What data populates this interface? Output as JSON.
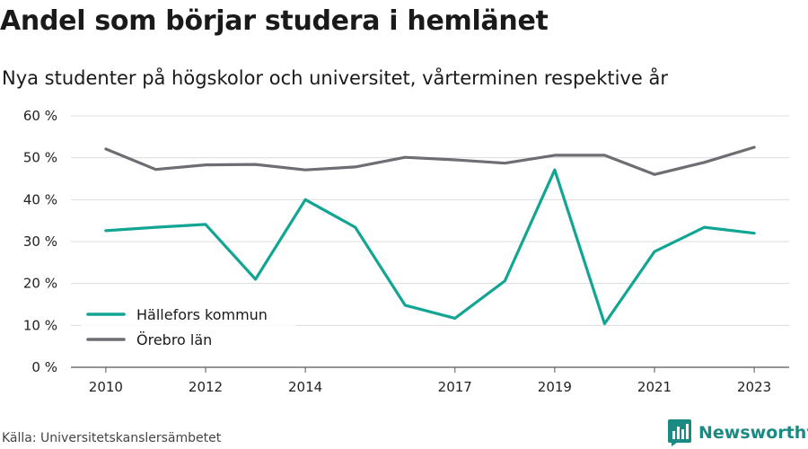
{
  "title": "Andel som börjar studera i hemlänet",
  "subtitle": "Nya studenter på högskolor och universitet, vårterminen respektive år",
  "source": "Källa: Universitetskanslersämbetet",
  "brand": {
    "name": "Newsworthy",
    "logo_icon": "bar-chart-document-icon",
    "color": "#1a8a83"
  },
  "chart_data": {
    "type": "line",
    "x": [
      2010,
      2011,
      2012,
      2013,
      2014,
      2015,
      2016,
      2017,
      2018,
      2019,
      2020,
      2021,
      2022,
      2023
    ],
    "x_tick_labels": [
      "2010",
      "2012",
      "2014",
      "2017",
      "2019",
      "2021",
      "2023"
    ],
    "x_tick_values": [
      2010,
      2012,
      2014,
      2017,
      2019,
      2021,
      2023
    ],
    "xlim": [
      2009.3,
      2023.7
    ],
    "ylim": [
      0,
      60
    ],
    "y_ticks": [
      0,
      10,
      20,
      30,
      40,
      50,
      60
    ],
    "y_tick_labels": [
      "0 %",
      "10 %",
      "20 %",
      "30 %",
      "40 %",
      "50 %",
      "60 %"
    ],
    "grid": "horizontal",
    "legend_position": "bottom-left",
    "series": [
      {
        "name": "Hällefors kommun",
        "color": "#12a594",
        "values": [
          32.6,
          33.4,
          34.1,
          21.0,
          40.0,
          33.4,
          14.8,
          11.7,
          20.6,
          47.1,
          10.4,
          27.6,
          33.4,
          32.0
        ]
      },
      {
        "name": "Örebro län",
        "color": "#6e6d73",
        "values": [
          52.1,
          47.2,
          48.3,
          48.4,
          47.1,
          47.8,
          50.1,
          49.5,
          48.7,
          50.6,
          50.6,
          46.0,
          48.9,
          52.5
        ]
      }
    ]
  }
}
